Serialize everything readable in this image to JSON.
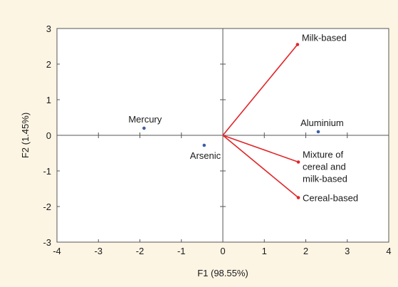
{
  "chart_data": {
    "type": "biplot",
    "xlabel": "F1 (98.55%)",
    "ylabel": "F2 (1.45%)",
    "xlim": [
      -4,
      4
    ],
    "ylim": [
      -3,
      3
    ],
    "xticks": [
      "-4",
      "-3",
      "-2",
      "-1",
      "0",
      "1",
      "2",
      "3",
      "4"
    ],
    "yticks": [
      "-3",
      "-2",
      "-1",
      "0",
      "1",
      "2",
      "3"
    ],
    "grid": false,
    "variables": [
      {
        "name": "Milk-based",
        "label_lines": [
          "Milk-based"
        ],
        "x": 1.8,
        "y": 2.55
      },
      {
        "name": "Mixture of cereal and milk-based",
        "label_lines": [
          "Mixture of",
          "cereal and",
          "milk-based"
        ],
        "x": 1.82,
        "y": -0.75
      },
      {
        "name": "Cereal-based",
        "label_lines": [
          "Cereal-based"
        ],
        "x": 1.82,
        "y": -1.75
      }
    ],
    "observations": [
      {
        "name": "Mercury",
        "x": -1.9,
        "y": 0.2
      },
      {
        "name": "Arsenic",
        "x": -0.45,
        "y": -0.28
      },
      {
        "name": "Aluminium",
        "x": 2.3,
        "y": 0.1
      }
    ],
    "colors": {
      "vector": "#e0262a",
      "point": "#3b5fa8",
      "background": "#fdf5e4",
      "plot": "#ffffff"
    }
  }
}
